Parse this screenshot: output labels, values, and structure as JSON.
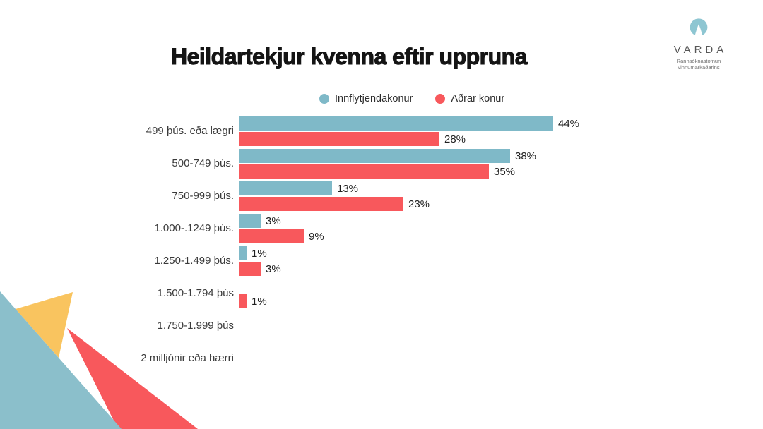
{
  "title": "Heildartekjur kvenna eftir uppruna",
  "legend": {
    "items": [
      {
        "label": "Innflytjendakonur",
        "color": "#7fb9c8"
      },
      {
        "label": "Aðrar konur",
        "color": "#f8585c"
      }
    ]
  },
  "logo": {
    "name": "VARÐA",
    "subtitle_line1": "Rannsóknastofnun",
    "subtitle_line2": "vinnumarkaðarins",
    "mark_color": "#8ec6d2"
  },
  "chart_data": {
    "type": "bar",
    "orientation": "horizontal",
    "title": "Heildartekjur kvenna eftir uppruna",
    "xlabel": "",
    "ylabel": "",
    "xlim": [
      0,
      44
    ],
    "grid": false,
    "legend_position": "top",
    "value_suffix": "%",
    "categories": [
      "499 þús. eða lægri",
      "500-749 þús.",
      "750-999 þús.",
      "1.000-.1249 þús.",
      "1.250-1.499 þús.",
      "1.500-1.794 þús",
      "1.750-1.999 þús",
      "2 milljónir eða hærri"
    ],
    "series": [
      {
        "name": "Innflytjendakonur",
        "color": "#7fb9c8",
        "values": [
          44,
          38,
          13,
          3,
          1,
          0,
          0,
          0
        ]
      },
      {
        "name": "Aðrar konur",
        "color": "#f8585c",
        "values": [
          28,
          35,
          23,
          9,
          3,
          1,
          0,
          0
        ]
      }
    ]
  },
  "decor": {
    "teal": "#8bbfcb",
    "yellow": "#f9c45f",
    "red": "#f8585c"
  }
}
